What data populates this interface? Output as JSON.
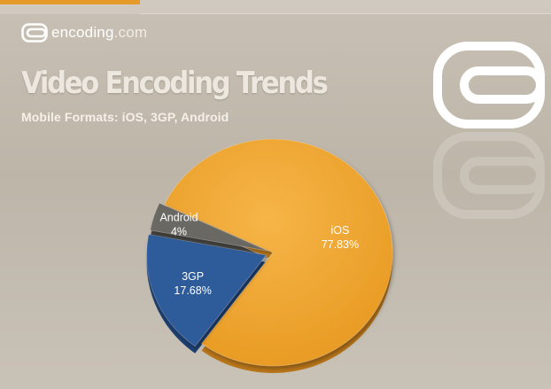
{
  "logo": {
    "brand": "encoding",
    "domain": ".com"
  },
  "header": {
    "title": "Video Encoding Trends",
    "subtitle": "Mobile Formats:  iOS, 3GP, Android"
  },
  "colors": {
    "ios": "#f0a32e",
    "3gp": "#2e5b9a",
    "android": "#6b6863",
    "brand_accent": "#e59a2a"
  },
  "chart_data": {
    "type": "pie",
    "title": "",
    "slices": [
      {
        "name": "iOS",
        "label": "77.83%",
        "value": 77.83
      },
      {
        "name": "3GP",
        "label": "17.68%",
        "value": 17.68
      },
      {
        "name": "Android",
        "label": "4%",
        "value": 4
      }
    ]
  }
}
